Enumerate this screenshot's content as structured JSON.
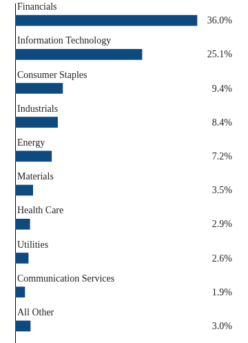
{
  "chart_data": {
    "type": "bar",
    "orientation": "horizontal",
    "categories": [
      "Financials",
      "Information Technology",
      "Consumer Staples",
      "Industrials",
      "Energy",
      "Materials",
      "Health Care",
      "Utilities",
      "Communication Services",
      "All Other"
    ],
    "values": [
      36.0,
      25.1,
      9.4,
      8.4,
      7.2,
      3.5,
      2.9,
      2.6,
      1.9,
      3.0
    ],
    "value_labels": [
      "36.0%",
      "25.1%",
      "9.4%",
      "8.4%",
      "7.2%",
      "3.5%",
      "2.9%",
      "2.6%",
      "1.9%",
      "3.0%"
    ],
    "color": "#0d4a80",
    "xlim": [
      0,
      45
    ],
    "grid": false,
    "data_labels": true,
    "tick_labels": false
  }
}
